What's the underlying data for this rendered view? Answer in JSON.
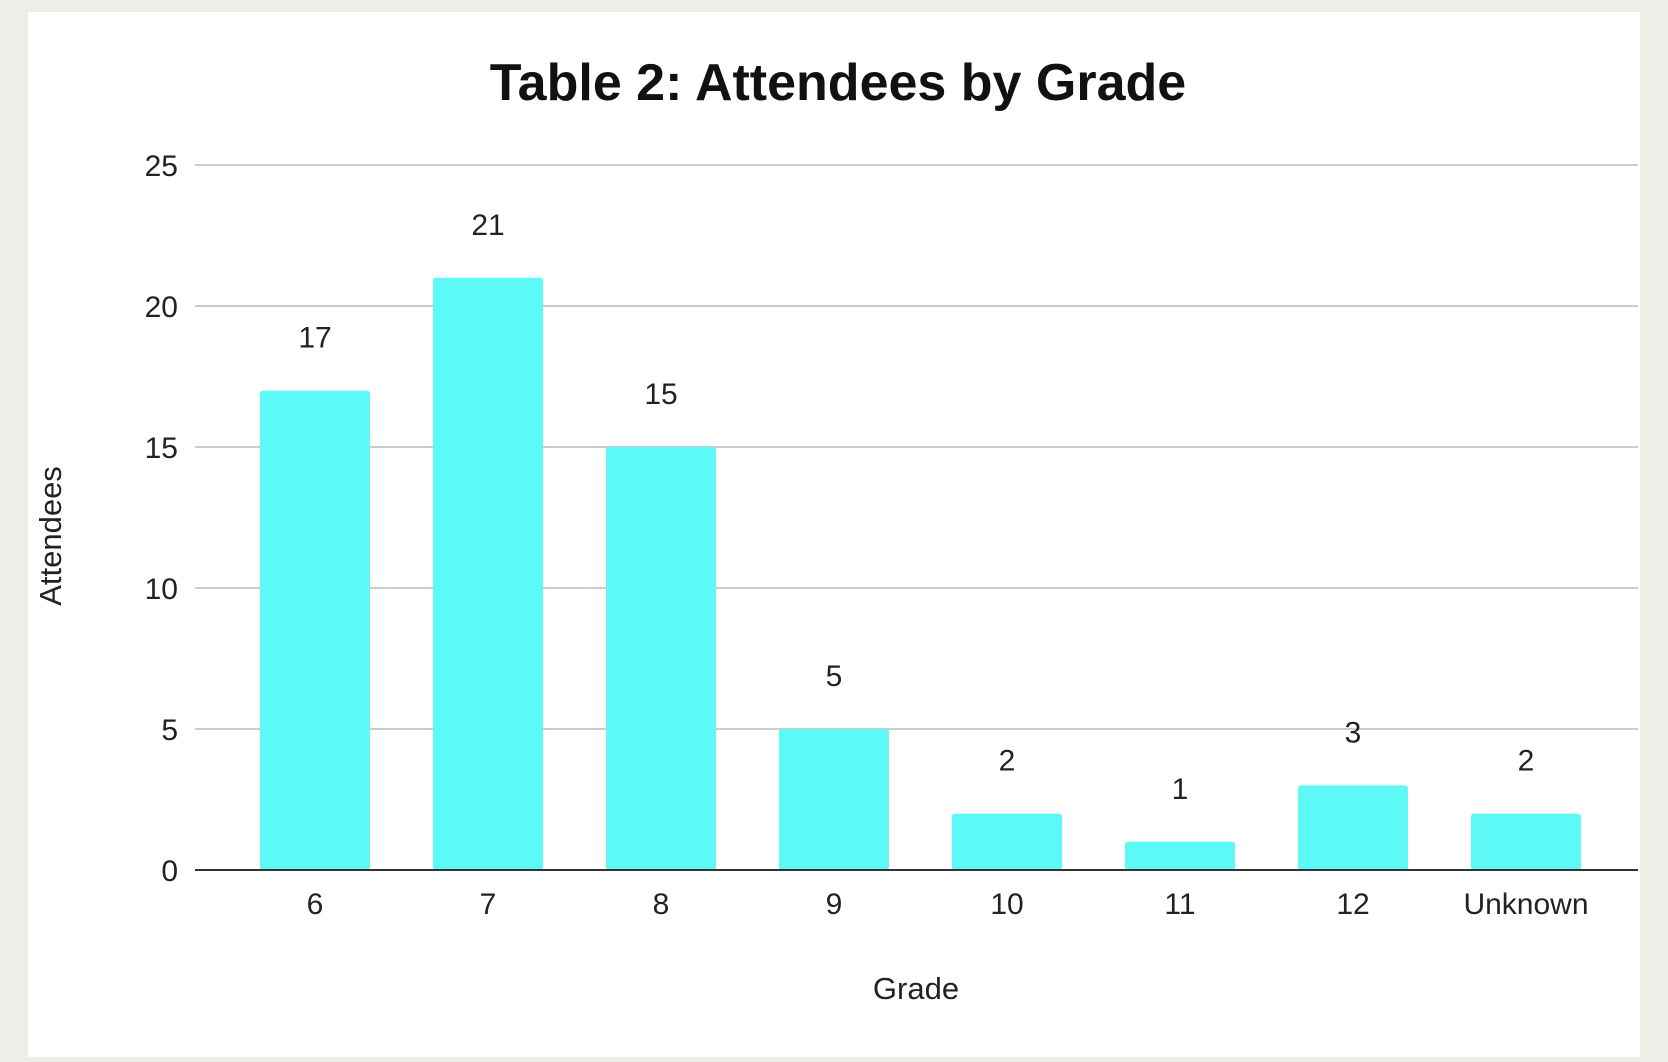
{
  "chart_data": {
    "type": "bar",
    "title": "Table 2: Attendees by Grade",
    "xlabel": "Grade",
    "ylabel": "Attendees",
    "categories": [
      "6",
      "7",
      "8",
      "9",
      "10",
      "11",
      "12",
      "Unknown"
    ],
    "values": [
      17,
      21,
      15,
      5,
      2,
      1,
      3,
      2
    ],
    "data_labels": [
      "17",
      "21",
      "15",
      "5",
      "2",
      "1",
      "3",
      "2"
    ],
    "ylim": [
      0,
      25
    ],
    "yticks": [
      0,
      5,
      10,
      15,
      20,
      25
    ],
    "ytick_labels": [
      "0",
      "5",
      "10",
      "15",
      "20",
      "25"
    ],
    "grid": true,
    "legend": "none",
    "bar_color": "#5cf9f7",
    "background_color": "#eeeee8",
    "panel_color": "#ffffff",
    "gridline_color": "#cccccc",
    "baseline_color": "#333333"
  }
}
